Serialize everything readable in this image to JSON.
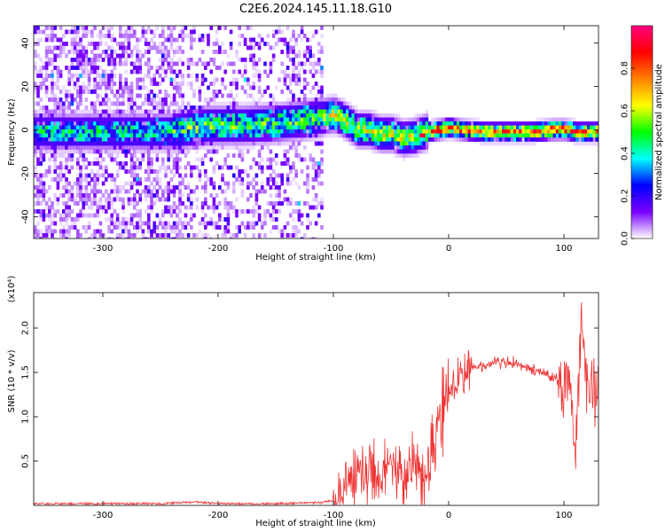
{
  "title": "C2E6.2024.145.11.18.G10",
  "chart_data": [
    {
      "type": "heatmap",
      "xlabel": "Height of straight line (km)",
      "ylabel": "Frequency (Hz)",
      "xlim": [
        -360,
        130
      ],
      "ylim": [
        -50,
        48
      ],
      "x_ticks": [
        -300,
        -200,
        -100,
        0,
        100
      ],
      "x_tick_labels": [
        "-300",
        "-200",
        "-100",
        "0",
        "100"
      ],
      "y_ticks": [
        -40,
        -20,
        0,
        20,
        40
      ],
      "y_tick_labels": [
        "-40",
        "-20",
        "0",
        "20",
        "40"
      ],
      "colorbar": {
        "label": "Normalized spectral amplitude",
        "range": [
          0.0,
          1.0
        ],
        "ticks": [
          0.0,
          0.2,
          0.4,
          0.6,
          0.8
        ],
        "tick_labels": [
          "0.0",
          "0.2",
          "0.4",
          "0.6",
          "0.8"
        ],
        "colormap": [
          "#ffffff",
          "#7a00ff",
          "#0000ff",
          "#00ffff",
          "#00ff00",
          "#ffff00",
          "#ff8000",
          "#ff0000",
          "#ff0080"
        ]
      },
      "ridge": {
        "x": [
          -300,
          -270,
          -240,
          -210,
          -180,
          -150,
          -120,
          -110,
          -100,
          -90,
          -80,
          -70,
          -60,
          -50,
          -40,
          -30,
          -20,
          -10,
          0,
          10,
          30,
          50,
          70,
          90,
          100,
          110,
          130
        ],
        "y": [
          0,
          0,
          0,
          3,
          3,
          4,
          6,
          7,
          8,
          5,
          1,
          1,
          -1,
          -1,
          -3,
          -2,
          0,
          1,
          2,
          1,
          0,
          0,
          0,
          1,
          1,
          0,
          0
        ]
      },
      "grid": false
    },
    {
      "type": "line",
      "xlabel": "Height of straight line (km)",
      "ylabel": "SNR (10 * v/v)",
      "y_scale_label": "(x10⁴)",
      "xlim": [
        -360,
        130
      ],
      "ylim": [
        0,
        2.4
      ],
      "x_ticks": [
        -300,
        -200,
        -100,
        0,
        100
      ],
      "x_tick_labels": [
        "-300",
        "-200",
        "-100",
        "0",
        "100"
      ],
      "y_ticks": [
        0.5,
        1.0,
        1.5,
        2.0
      ],
      "y_tick_labels": [
        "0.5",
        "1.0",
        "1.5",
        "2.0"
      ],
      "series": [
        {
          "color": "#ee3333",
          "x": [
            -360,
            -300,
            -250,
            -220,
            -200,
            -150,
            -110,
            -100,
            -90,
            -80,
            -70,
            -60,
            -50,
            -40,
            -30,
            -20,
            -15,
            -10,
            -5,
            0,
            10,
            20,
            30,
            40,
            50,
            60,
            70,
            80,
            90,
            100,
            105,
            110,
            115,
            120,
            130
          ],
          "y": [
            0.02,
            0.02,
            0.02,
            0.04,
            0.02,
            0.02,
            0.03,
            0.06,
            0.15,
            0.3,
            0.4,
            0.35,
            0.45,
            0.3,
            0.5,
            0.25,
            0.7,
            0.9,
            1.1,
            1.3,
            1.45,
            1.55,
            1.58,
            1.6,
            1.62,
            1.6,
            1.55,
            1.5,
            1.45,
            1.4,
            1.45,
            0.5,
            2.2,
            1.35,
            1.32
          ]
        }
      ],
      "grid": false
    }
  ]
}
